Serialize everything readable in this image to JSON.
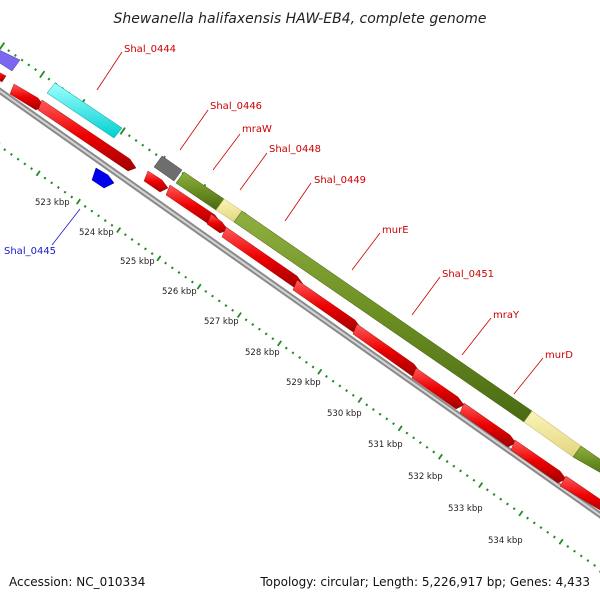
{
  "title": "Shewanella halifaxensis HAW-EB4, complete genome",
  "footer": {
    "accession": "Accession: NC_010334",
    "summary": "Topology: circular; Length: 5,226,917 bp; Genes: 4,433"
  },
  "tick_labels": [
    "523 kbp",
    "524 kbp",
    "525 kbp",
    "526 kbp",
    "527 kbp",
    "528 kbp",
    "529 kbp",
    "530 kbp",
    "531 kbp",
    "532 kbp",
    "533 kbp",
    "534 kbp"
  ],
  "gene_labels": [
    {
      "text": "Shal_0444",
      "strand": "forward"
    },
    {
      "text": "Shal_0446",
      "strand": "forward"
    },
    {
      "text": "mraW",
      "strand": "forward"
    },
    {
      "text": "Shal_0448",
      "strand": "forward"
    },
    {
      "text": "Shal_0449",
      "strand": "forward"
    },
    {
      "text": "murE",
      "strand": "forward"
    },
    {
      "text": "Shal_0451",
      "strand": "forward"
    },
    {
      "text": "mraY",
      "strand": "forward"
    },
    {
      "text": "murD",
      "strand": "forward"
    },
    {
      "text": "Shal_0445",
      "strand": "reverse"
    }
  ],
  "colors": {
    "cds": "#ee0000",
    "green_feature": "#6b8e23",
    "pale_feature": "#f0e68c",
    "cyan_feature": "#00ffff",
    "grey_feature": "#707070",
    "purple_feature": "#7b68ee",
    "blue_feature": "#0000ee",
    "tick_marks": "#228b22",
    "backbone": "#999999",
    "forward_label": "#cc0000",
    "reverse_label": "#1a1acc"
  }
}
